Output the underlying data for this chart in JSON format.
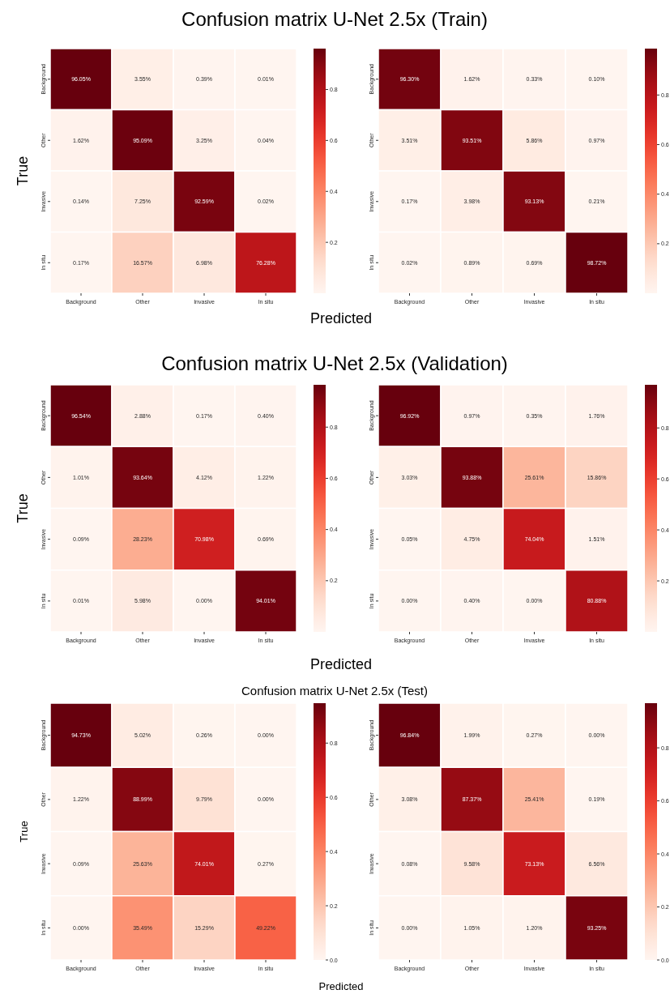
{
  "chart_data": [
    {
      "type": "heatmap",
      "title": "Confusion matrix U-Net 2.5x (Train)",
      "xlabel": "Predicted",
      "ylabel": "True",
      "categories": [
        "Background",
        "Other",
        "Invasive",
        "In situ"
      ],
      "y_categories": [
        "Background",
        "Other",
        "Invasive",
        "In situ"
      ],
      "cells": [
        [
          0.9605,
          0.0355,
          0.0039,
          0.0001
        ],
        [
          0.0162,
          0.9509,
          0.0325,
          0.0004
        ],
        [
          0.0014,
          0.0725,
          0.9259,
          0.0002
        ],
        [
          0.0017,
          0.1657,
          0.0698,
          0.7628
        ]
      ],
      "cell_labels": [
        [
          "96.05%",
          "3.55%",
          "0.39%",
          "0.01%"
        ],
        [
          "1.62%",
          "95.09%",
          "3.25%",
          "0.04%"
        ],
        [
          "0.14%",
          "7.25%",
          "92.59%",
          "0.02%"
        ],
        [
          "0.17%",
          "16.57%",
          "6.98%",
          "76.28%"
        ]
      ],
      "clim": [
        0.0001,
        0.9605
      ],
      "cticks": [
        0.2,
        0.4,
        0.6,
        0.8
      ]
    },
    {
      "type": "heatmap",
      "categories": [
        "Background",
        "Other",
        "Invasive",
        "In situ"
      ],
      "y_categories": [
        "Background",
        "Other",
        "Invasive",
        "In situ"
      ],
      "cells": [
        [
          0.963,
          0.0162,
          0.0033,
          0.001
        ],
        [
          0.0351,
          0.9351,
          0.0586,
          0.0097
        ],
        [
          0.0017,
          0.0398,
          0.9313,
          0.0021
        ],
        [
          0.0002,
          0.0089,
          0.0069,
          0.9872
        ]
      ],
      "cell_labels": [
        [
          "96.30%",
          "1.62%",
          "0.33%",
          "0.10%"
        ],
        [
          "3.51%",
          "93.51%",
          "5.86%",
          "0.97%"
        ],
        [
          "0.17%",
          "3.98%",
          "93.13%",
          "0.21%"
        ],
        [
          "0.02%",
          "0.89%",
          "0.69%",
          "98.72%"
        ]
      ],
      "clim": [
        0.0002,
        0.9872
      ],
      "cticks": [
        0.2,
        0.4,
        0.6,
        0.8
      ]
    },
    {
      "type": "heatmap",
      "title": "Confusion matrix U-Net 2.5x (Validation)",
      "xlabel": "Predicted",
      "ylabel": "True",
      "categories": [
        "Background",
        "Other",
        "Invasive",
        "In situ"
      ],
      "y_categories": [
        "Background",
        "Other",
        "Invasive",
        "In situ"
      ],
      "cells": [
        [
          0.9654,
          0.0288,
          0.0017,
          0.004
        ],
        [
          0.0101,
          0.9364,
          0.0412,
          0.0122
        ],
        [
          0.0009,
          0.2823,
          0.7098,
          0.0069
        ],
        [
          0.0001,
          0.0598,
          0.0,
          0.9401
        ]
      ],
      "cell_labels": [
        [
          "96.54%",
          "2.88%",
          "0.17%",
          "0.40%"
        ],
        [
          "1.01%",
          "93.64%",
          "4.12%",
          "1.22%"
        ],
        [
          "0.09%",
          "28.23%",
          "70.98%",
          "0.69%"
        ],
        [
          "0.01%",
          "5.98%",
          "0.00%",
          "94.01%"
        ]
      ],
      "clim": [
        0.0,
        0.9654
      ],
      "cticks": [
        0.2,
        0.4,
        0.6,
        0.8
      ]
    },
    {
      "type": "heatmap",
      "categories": [
        "Background",
        "Other",
        "Invasive",
        "In situ"
      ],
      "y_categories": [
        "Background",
        "Other",
        "Invasive",
        "In situ"
      ],
      "cells": [
        [
          0.9692,
          0.0097,
          0.0035,
          0.0176
        ],
        [
          0.0303,
          0.9388,
          0.2561,
          0.1586
        ],
        [
          0.0005,
          0.0475,
          0.7404,
          0.0151
        ],
        [
          0.0,
          0.004,
          0.0,
          0.8088
        ]
      ],
      "cell_labels": [
        [
          "96.92%",
          "0.97%",
          "0.35%",
          "1.76%"
        ],
        [
          "3.03%",
          "93.88%",
          "25.61%",
          "15.86%"
        ],
        [
          "0.05%",
          "4.75%",
          "74.04%",
          "1.51%"
        ],
        [
          "0.00%",
          "0.40%",
          "0.00%",
          "80.88%"
        ]
      ],
      "clim": [
        0.0,
        0.9692
      ],
      "cticks": [
        0.2,
        0.4,
        0.6,
        0.8
      ]
    },
    {
      "type": "heatmap",
      "title": "Confusion matrix U-Net 2.5x (Test)",
      "xlabel": "Predicted",
      "ylabel": "True",
      "categories": [
        "Background",
        "Other",
        "Invasive",
        "In situ"
      ],
      "y_categories": [
        "Background",
        "Other",
        "Invasive",
        "In situ"
      ],
      "cells": [
        [
          0.9473,
          0.0502,
          0.0026,
          0.0
        ],
        [
          0.0122,
          0.8899,
          0.0979,
          0.0
        ],
        [
          0.0009,
          0.2563,
          0.7401,
          0.0027
        ],
        [
          0.0,
          0.3549,
          0.1529,
          0.4922
        ]
      ],
      "cell_labels": [
        [
          "94.73%",
          "5.02%",
          "0.26%",
          "0.00%"
        ],
        [
          "1.22%",
          "88.99%",
          "9.79%",
          "0.00%"
        ],
        [
          "0.09%",
          "25.63%",
          "74.01%",
          "0.27%"
        ],
        [
          "0.00%",
          "35.49%",
          "15.29%",
          "49.22%"
        ]
      ],
      "clim": [
        0.0,
        0.9473
      ],
      "cticks": [
        {
          "value": 0,
          "label": "0.0"
        },
        0.2,
        0.4,
        0.6,
        0.8
      ]
    },
    {
      "type": "heatmap",
      "categories": [
        "Background",
        "Other",
        "Invasive",
        "In situ"
      ],
      "y_categories": [
        "Background",
        "Other",
        "Invasive",
        "In situ"
      ],
      "cells": [
        [
          0.9684,
          0.0199,
          0.0027,
          0.0
        ],
        [
          0.0308,
          0.8737,
          0.2541,
          0.0019
        ],
        [
          0.0008,
          0.0958,
          0.7313,
          0.0656
        ],
        [
          0.0,
          0.0105,
          0.012,
          0.9325
        ]
      ],
      "cell_labels": [
        [
          "96.84%",
          "1.99%",
          "0.27%",
          "0.00%"
        ],
        [
          "3.08%",
          "87.37%",
          "25.41%",
          "0.19%"
        ],
        [
          "0.08%",
          "9.58%",
          "73.13%",
          "6.56%"
        ],
        [
          "0.00%",
          "1.05%",
          "1.20%",
          "93.25%"
        ]
      ],
      "clim": [
        0.0,
        0.9684
      ],
      "cticks": [
        {
          "value": 0,
          "label": "0.0"
        },
        0.2,
        0.4,
        0.6,
        0.8
      ]
    }
  ]
}
